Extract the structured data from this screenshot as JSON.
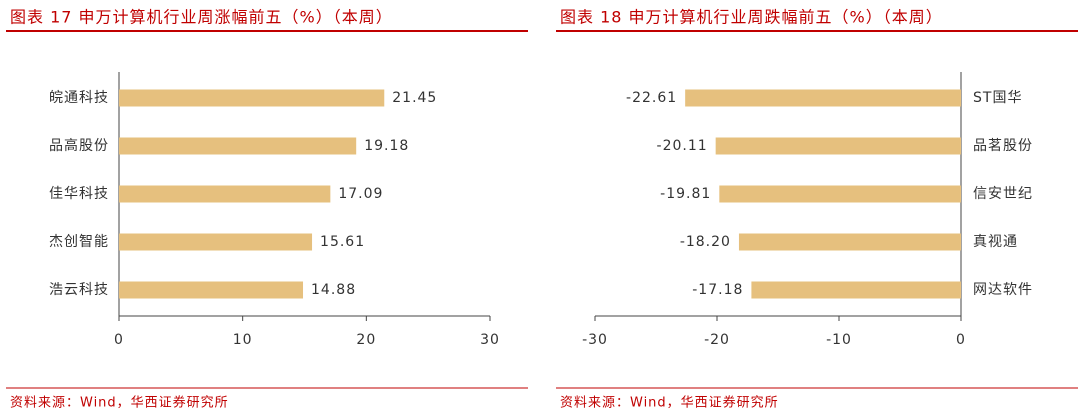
{
  "chart_data": [
    {
      "type": "bar",
      "orientation": "horizontal",
      "title": "图表 17 申万计算机行业周涨幅前五（%）（本周）",
      "source": "资料来源：Wind，华西证券研究所",
      "categories": [
        "皖通科技",
        "品高股份",
        "佳华科技",
        "杰创智能",
        "浩云科技"
      ],
      "values": [
        21.45,
        19.18,
        17.09,
        15.61,
        14.88
      ],
      "value_labels": [
        "21.45",
        "19.18",
        "17.09",
        "15.61",
        "14.88"
      ],
      "color": "#e6c07e",
      "xlim": [
        0,
        30
      ],
      "xticks": [
        0,
        10,
        20,
        30
      ]
    },
    {
      "type": "bar",
      "orientation": "horizontal",
      "title": "图表 18 申万计算机行业周跌幅前五（%）（本周）",
      "source": "资料来源：Wind，华西证券研究所",
      "categories": [
        "ST国华",
        "品茗股份",
        "信安世纪",
        "真视通",
        "网达软件"
      ],
      "values": [
        -22.61,
        -20.11,
        -19.81,
        -18.2,
        -17.18
      ],
      "value_labels": [
        "-22.61",
        "-20.11",
        "-19.81",
        "-18.20",
        "-17.18"
      ],
      "color": "#e6c07e",
      "xlim": [
        -30,
        0
      ],
      "xticks": [
        -30,
        -20,
        -10,
        0
      ]
    }
  ]
}
